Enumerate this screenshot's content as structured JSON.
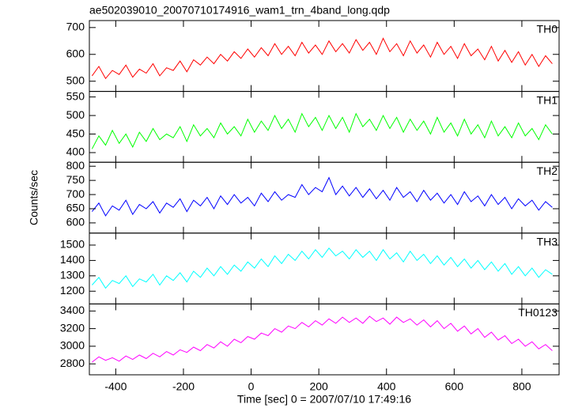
{
  "chart_data": [
    {
      "type": "line",
      "title": "ae502039010_20070710174916_wam1_trn_4band_long.qdp",
      "x": [
        -470,
        -450,
        -430,
        -410,
        -390,
        -370,
        -350,
        -330,
        -310,
        -290,
        -270,
        -250,
        -230,
        -210,
        -190,
        -170,
        -150,
        -130,
        -110,
        -90,
        -70,
        -50,
        -30,
        -10,
        10,
        30,
        50,
        70,
        90,
        110,
        130,
        150,
        170,
        190,
        210,
        230,
        250,
        270,
        290,
        310,
        330,
        350,
        370,
        390,
        410,
        430,
        450,
        470,
        490,
        510,
        530,
        550,
        570,
        590,
        610,
        630,
        650,
        670,
        690,
        710,
        730,
        750,
        770,
        790,
        810,
        830,
        850,
        870,
        890
      ],
      "series": [
        {
          "name": "TH0",
          "color": "#ff0000",
          "values": [
            520,
            555,
            510,
            540,
            525,
            560,
            515,
            545,
            530,
            565,
            520,
            550,
            540,
            575,
            535,
            580,
            560,
            590,
            565,
            600,
            575,
            610,
            585,
            620,
            590,
            625,
            595,
            640,
            600,
            630,
            595,
            645,
            605,
            635,
            600,
            650,
            610,
            640,
            605,
            655,
            615,
            645,
            600,
            660,
            610,
            640,
            595,
            650,
            605,
            635,
            590,
            645,
            600,
            630,
            585,
            640,
            595,
            620,
            580,
            630,
            575,
            615,
            570,
            610,
            560,
            600,
            555,
            595,
            565
          ]
        }
      ],
      "xlim": [
        -478,
        910
      ],
      "xticks": [
        -400,
        -200,
        0,
        200,
        400,
        600,
        800
      ],
      "ylim": [
        462,
        726
      ],
      "yticks": [
        500,
        600,
        700
      ]
    },
    {
      "type": "line",
      "x": [
        -470,
        -450,
        -430,
        -410,
        -390,
        -370,
        -350,
        -330,
        -310,
        -290,
        -270,
        -250,
        -230,
        -210,
        -190,
        -170,
        -150,
        -130,
        -110,
        -90,
        -70,
        -50,
        -30,
        -10,
        10,
        30,
        50,
        70,
        90,
        110,
        130,
        150,
        170,
        190,
        210,
        230,
        250,
        270,
        290,
        310,
        330,
        350,
        370,
        390,
        410,
        430,
        450,
        470,
        490,
        510,
        530,
        550,
        570,
        590,
        610,
        630,
        650,
        670,
        690,
        710,
        730,
        750,
        770,
        790,
        810,
        830,
        850,
        870,
        890
      ],
      "series": [
        {
          "name": "TH1",
          "color": "#00ff00",
          "values": [
            410,
            445,
            420,
            460,
            425,
            450,
            415,
            455,
            430,
            465,
            435,
            450,
            440,
            470,
            430,
            475,
            445,
            465,
            440,
            480,
            450,
            470,
            445,
            490,
            455,
            485,
            460,
            500,
            465,
            490,
            455,
            505,
            470,
            495,
            460,
            500,
            465,
            495,
            455,
            505,
            470,
            490,
            460,
            500,
            465,
            495,
            455,
            490,
            460,
            485,
            450,
            495,
            455,
            480,
            445,
            490,
            450,
            475,
            440,
            485,
            445,
            470,
            440,
            480,
            445,
            465,
            435,
            475,
            450
          ]
        }
      ],
      "xlim": [
        -478,
        910
      ],
      "xticks": [
        -400,
        -200,
        0,
        200,
        400,
        600,
        800
      ],
      "ylim": [
        374,
        565
      ],
      "yticks": [
        400,
        450,
        500,
        550
      ]
    },
    {
      "type": "line",
      "ylabel": "Counts/sec",
      "x": [
        -470,
        -450,
        -430,
        -410,
        -390,
        -370,
        -350,
        -330,
        -310,
        -290,
        -270,
        -250,
        -230,
        -210,
        -190,
        -170,
        -150,
        -130,
        -110,
        -90,
        -70,
        -50,
        -30,
        -10,
        10,
        30,
        50,
        70,
        90,
        110,
        130,
        150,
        170,
        190,
        210,
        230,
        250,
        270,
        290,
        310,
        330,
        350,
        370,
        390,
        410,
        430,
        450,
        470,
        490,
        510,
        530,
        550,
        570,
        590,
        610,
        630,
        650,
        670,
        690,
        710,
        730,
        750,
        770,
        790,
        810,
        830,
        850,
        870,
        890
      ],
      "series": [
        {
          "name": "TH2",
          "color": "#0000ff",
          "values": [
            640,
            670,
            625,
            660,
            645,
            680,
            630,
            665,
            650,
            675,
            635,
            670,
            655,
            685,
            640,
            680,
            660,
            690,
            650,
            695,
            665,
            700,
            670,
            690,
            660,
            705,
            675,
            710,
            680,
            700,
            690,
            735,
            700,
            725,
            710,
            760,
            700,
            730,
            695,
            725,
            690,
            720,
            685,
            715,
            680,
            725,
            690,
            710,
            675,
            715,
            680,
            705,
            670,
            700,
            665,
            710,
            675,
            695,
            660,
            700,
            665,
            690,
            650,
            685,
            660,
            680,
            645,
            675,
            655
          ]
        }
      ],
      "xlim": [
        -478,
        910
      ],
      "xticks": [
        -400,
        -200,
        0,
        200,
        400,
        600,
        800
      ],
      "ylim": [
        564,
        814
      ],
      "yticks": [
        600,
        650,
        700,
        750,
        800
      ]
    },
    {
      "type": "line",
      "x": [
        -470,
        -450,
        -430,
        -410,
        -390,
        -370,
        -350,
        -330,
        -310,
        -290,
        -270,
        -250,
        -230,
        -210,
        -190,
        -170,
        -150,
        -130,
        -110,
        -90,
        -70,
        -50,
        -30,
        -10,
        10,
        30,
        50,
        70,
        90,
        110,
        130,
        150,
        170,
        190,
        210,
        230,
        250,
        270,
        290,
        310,
        330,
        350,
        370,
        390,
        410,
        430,
        450,
        470,
        490,
        510,
        530,
        550,
        570,
        590,
        610,
        630,
        650,
        670,
        690,
        710,
        730,
        750,
        770,
        790,
        810,
        830,
        850,
        870,
        890
      ],
      "series": [
        {
          "name": "TH3",
          "color": "#00ffff",
          "values": [
            1240,
            1290,
            1220,
            1270,
            1250,
            1300,
            1230,
            1280,
            1260,
            1310,
            1240,
            1300,
            1270,
            1320,
            1260,
            1330,
            1290,
            1350,
            1300,
            1360,
            1310,
            1370,
            1330,
            1390,
            1350,
            1410,
            1360,
            1430,
            1380,
            1440,
            1400,
            1460,
            1410,
            1470,
            1420,
            1480,
            1430,
            1460,
            1410,
            1470,
            1420,
            1460,
            1400,
            1470,
            1410,
            1450,
            1390,
            1460,
            1400,
            1440,
            1380,
            1430,
            1370,
            1420,
            1360,
            1410,
            1350,
            1400,
            1340,
            1390,
            1330,
            1380,
            1310,
            1360,
            1300,
            1350,
            1290,
            1340,
            1310
          ]
        }
      ],
      "xlim": [
        -478,
        910
      ],
      "xticks": [
        -400,
        -200,
        0,
        200,
        400,
        600,
        800
      ],
      "ylim": [
        1117,
        1578
      ],
      "yticks": [
        1200,
        1300,
        1400,
        1500
      ]
    },
    {
      "type": "line",
      "xlabel": "Time [sec] 0 = 2007/07/10 17:49:16",
      "x": [
        -470,
        -450,
        -430,
        -410,
        -390,
        -370,
        -350,
        -330,
        -310,
        -290,
        -270,
        -250,
        -230,
        -210,
        -190,
        -170,
        -150,
        -130,
        -110,
        -90,
        -70,
        -50,
        -30,
        -10,
        10,
        30,
        50,
        70,
        90,
        110,
        130,
        150,
        170,
        190,
        210,
        230,
        250,
        270,
        290,
        310,
        330,
        350,
        370,
        390,
        410,
        430,
        450,
        470,
        490,
        510,
        530,
        550,
        570,
        590,
        610,
        630,
        650,
        670,
        690,
        710,
        730,
        750,
        770,
        790,
        810,
        830,
        850,
        870,
        890
      ],
      "series": [
        {
          "name": "TH0123",
          "color": "#ff00ff",
          "values": [
            2820,
            2880,
            2840,
            2870,
            2830,
            2890,
            2850,
            2900,
            2860,
            2920,
            2880,
            2940,
            2900,
            2960,
            2930,
            2990,
            2950,
            3020,
            2980,
            3050,
            3000,
            3080,
            3040,
            3110,
            3080,
            3150,
            3120,
            3200,
            3160,
            3230,
            3200,
            3270,
            3220,
            3290,
            3240,
            3310,
            3260,
            3330,
            3270,
            3320,
            3260,
            3340,
            3280,
            3320,
            3250,
            3330,
            3270,
            3310,
            3240,
            3300,
            3220,
            3290,
            3200,
            3260,
            3170,
            3230,
            3140,
            3200,
            3100,
            3160,
            3070,
            3120,
            3030,
            3080,
            3000,
            3050,
            2970,
            3020,
            2950
          ]
        }
      ],
      "xlim": [
        -478,
        910
      ],
      "xticks": [
        -400,
        -200,
        0,
        200,
        400,
        600,
        800
      ],
      "ylim": [
        2676,
        3480
      ],
      "yticks": [
        2800,
        3000,
        3200,
        3400
      ]
    }
  ]
}
